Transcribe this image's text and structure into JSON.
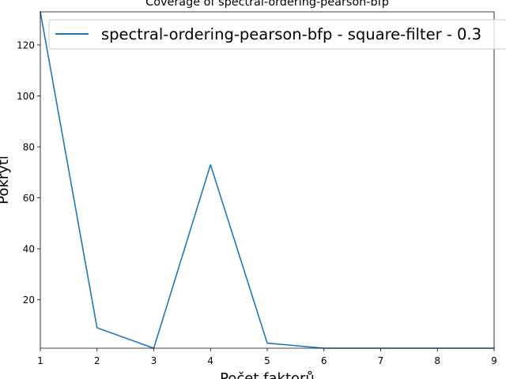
{
  "chart_data": {
    "type": "line",
    "title": "Coverage of spectral-ordering-pearson-bfp",
    "xlabel": "Počet faktorů",
    "ylabel": "Pokrytí",
    "xlim": [
      1,
      9
    ],
    "ylim": [
      1,
      133
    ],
    "xticks": [
      1,
      2,
      3,
      4,
      5,
      6,
      7,
      8,
      9
    ],
    "yticks": [
      20,
      40,
      60,
      80,
      100,
      120
    ],
    "legend_position": "top-right",
    "series": [
      {
        "name": "spectral-ordering-pearson-bfp - square-filter - 0.3",
        "color": "#1f77b4",
        "x": [
          1,
          2,
          3,
          4,
          5,
          6,
          7,
          8,
          9
        ],
        "y": [
          133,
          9,
          1,
          73,
          3,
          1,
          1,
          1,
          1
        ]
      }
    ]
  }
}
